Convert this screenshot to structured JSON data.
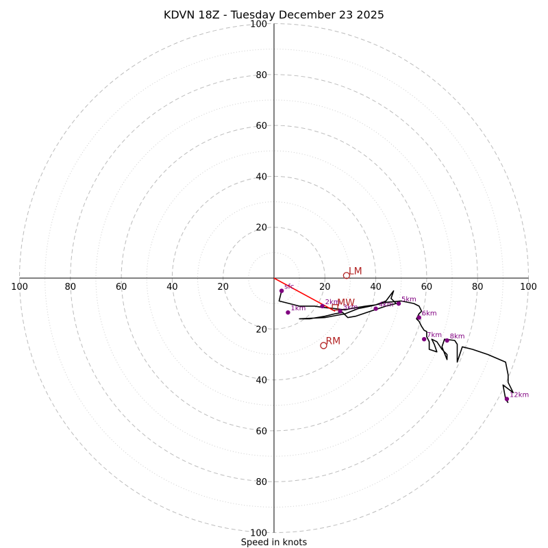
{
  "chart_data": {
    "type": "hodograph",
    "title": "KDVN 18Z - Tuesday December 23 2025",
    "xlabel": "Speed in knots",
    "range": [
      -100,
      100
    ],
    "rings": [
      20,
      40,
      60,
      80,
      100
    ],
    "minor_rings": [
      10,
      30,
      50,
      70,
      90
    ],
    "x_ticks": [
      "100",
      "80",
      "60",
      "40",
      "20",
      "20",
      "40",
      "60",
      "80",
      "100"
    ],
    "y_ticks": [
      "100",
      "80",
      "60",
      "40",
      "20",
      "20",
      "40",
      "60",
      "80",
      "100"
    ],
    "hodograph_trace": [
      [
        3,
        -5
      ],
      [
        2,
        -9
      ],
      [
        6,
        -10
      ],
      [
        10,
        -11
      ],
      [
        14,
        -11
      ],
      [
        16,
        -11
      ],
      [
        19,
        -11.5
      ],
      [
        24,
        -12
      ],
      [
        28,
        -12.5
      ],
      [
        30,
        -12
      ],
      [
        36,
        -11
      ],
      [
        40,
        -10.5
      ],
      [
        44,
        -9
      ],
      [
        47,
        -5
      ],
      [
        46,
        -8
      ],
      [
        48,
        -10
      ],
      [
        44,
        -11
      ],
      [
        38,
        -13
      ],
      [
        32,
        -15
      ],
      [
        29,
        -15.5
      ],
      [
        27,
        -13.5
      ],
      [
        24,
        -14
      ],
      [
        20,
        -15
      ],
      [
        14,
        -16
      ],
      [
        10,
        -16
      ],
      [
        20,
        -15.5
      ],
      [
        28,
        -14
      ],
      [
        33,
        -12
      ],
      [
        38,
        -11
      ],
      [
        44,
        -9.5
      ],
      [
        50,
        -9
      ],
      [
        55,
        -10
      ],
      [
        57,
        -11
      ],
      [
        58,
        -13
      ],
      [
        57,
        -14
      ],
      [
        56,
        -16
      ],
      [
        57,
        -17
      ],
      [
        58,
        -19
      ],
      [
        59,
        -20.5
      ],
      [
        60,
        -21
      ],
      [
        60,
        -23
      ],
      [
        61,
        -25
      ],
      [
        61,
        -28
      ],
      [
        64,
        -29
      ],
      [
        63,
        -26
      ],
      [
        62,
        -24
      ],
      [
        64,
        -25
      ],
      [
        66,
        -28
      ],
      [
        68,
        -30
      ],
      [
        68,
        -32
      ],
      [
        66,
        -27
      ],
      [
        67,
        -24
      ],
      [
        71,
        -24.5
      ],
      [
        72,
        -26
      ],
      [
        72,
        -29
      ],
      [
        72,
        -33
      ],
      [
        74,
        -27
      ],
      [
        78,
        -28
      ],
      [
        84,
        -30
      ],
      [
        91,
        -33
      ],
      [
        92,
        -38
      ],
      [
        92,
        -41
      ],
      [
        93,
        -43
      ],
      [
        94,
        -45
      ],
      [
        90,
        -42
      ],
      [
        91,
        -47.5
      ],
      [
        92,
        -49
      ]
    ],
    "height_markers": [
      {
        "label": "sfc",
        "u": 3,
        "v": -5
      },
      {
        "label": "1km",
        "u": 5.5,
        "v": -13.5
      },
      {
        "label": "2km",
        "u": 19,
        "v": -11
      },
      {
        "label": "3km",
        "u": 26,
        "v": -13
      },
      {
        "label": "4km",
        "u": 40,
        "v": -12
      },
      {
        "label": "5km",
        "u": 49,
        "v": -10
      },
      {
        "label": "6km",
        "u": 57,
        "v": -15.5
      },
      {
        "label": "7km",
        "u": 59,
        "v": -24
      },
      {
        "label": "8km",
        "u": 68,
        "v": -24.5
      },
      {
        "label": "12km",
        "u": 91.5,
        "v": -47.5
      }
    ],
    "storm_motions": [
      {
        "label": "LM",
        "u": 28.5,
        "v": 1
      },
      {
        "label": "MW",
        "u": 24,
        "v": -11.5
      },
      {
        "label": "RM",
        "u": 19.5,
        "v": -26.5
      }
    ],
    "mean_wind_vector": {
      "u": 24,
      "v": -13
    },
    "colors": {
      "trace": "#000000",
      "marker": "#800080",
      "storm_motion": "#b22222",
      "vector": "#ff0000",
      "ring": "#bbbbbb",
      "axis": "#000000"
    }
  }
}
